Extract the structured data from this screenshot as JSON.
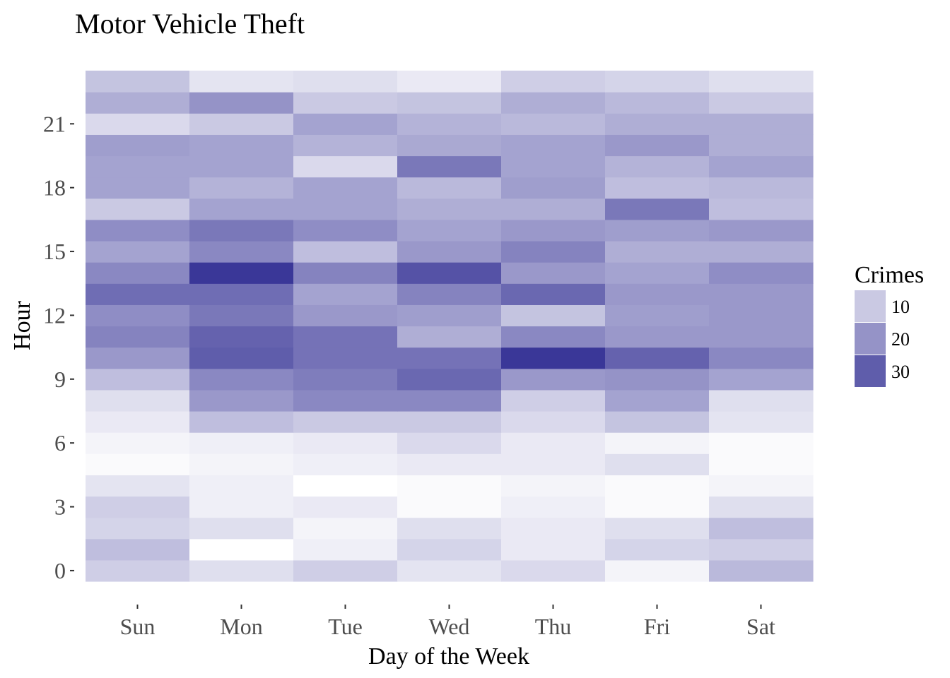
{
  "chart_data": {
    "type": "heatmap",
    "title": "Motor Vehicle Theft",
    "xlabel": "Day of the Week",
    "ylabel": "Hour",
    "x_categories": [
      "Sun",
      "Mon",
      "Tue",
      "Wed",
      "Thu",
      "Fri",
      "Sat"
    ],
    "y_hours": [
      0,
      1,
      2,
      3,
      4,
      5,
      6,
      7,
      8,
      9,
      10,
      11,
      12,
      13,
      14,
      15,
      16,
      17,
      18,
      19,
      20,
      21,
      22,
      23
    ],
    "y_ticks": [
      0,
      3,
      6,
      9,
      12,
      15,
      18,
      21
    ],
    "y_tick_labels": [
      "0",
      "3",
      "6",
      "9",
      "12",
      "15",
      "18",
      "21"
    ],
    "values": [
      [
        9,
        6,
        9,
        5,
        7,
        2,
        13
      ],
      [
        12,
        0,
        3,
        8,
        4,
        8,
        9
      ],
      [
        8,
        6,
        2,
        6,
        4,
        6,
        12
      ],
      [
        9,
        3,
        4,
        1,
        3,
        1,
        6
      ],
      [
        5,
        3,
        0,
        1,
        2,
        1,
        2
      ],
      [
        1,
        2,
        3,
        4,
        4,
        6,
        1
      ],
      [
        2,
        3,
        4,
        7,
        4,
        2,
        1
      ],
      [
        4,
        12,
        10,
        10,
        7,
        11,
        5
      ],
      [
        6,
        19,
        22,
        22,
        9,
        17,
        6
      ],
      [
        12,
        22,
        24,
        28,
        19,
        20,
        17
      ],
      [
        19,
        30,
        26,
        26,
        37,
        29,
        22
      ],
      [
        23,
        29,
        26,
        15,
        22,
        19,
        19
      ],
      [
        21,
        25,
        19,
        18,
        11,
        18,
        19
      ],
      [
        27,
        27,
        17,
        23,
        28,
        19,
        19
      ],
      [
        22,
        37,
        23,
        32,
        19,
        17,
        21
      ],
      [
        17,
        22,
        12,
        19,
        23,
        15,
        15
      ],
      [
        21,
        25,
        21,
        17,
        19,
        18,
        19
      ],
      [
        10,
        17,
        17,
        15,
        15,
        25,
        12
      ],
      [
        17,
        14,
        17,
        13,
        18,
        12,
        13
      ],
      [
        17,
        17,
        7,
        25,
        17,
        14,
        17
      ],
      [
        18,
        17,
        14,
        16,
        17,
        19,
        15
      ],
      [
        7,
        10,
        17,
        14,
        13,
        15,
        15
      ],
      [
        15,
        20,
        10,
        11,
        15,
        13,
        10
      ],
      [
        11,
        5,
        6,
        4,
        9,
        8,
        6
      ]
    ],
    "legend": {
      "title": "Crimes",
      "placement": "right",
      "breaks": [
        10,
        20,
        30
      ],
      "break_labels": [
        "10",
        "20",
        "30"
      ]
    },
    "color_scale": {
      "low": "#ffffff",
      "high": "#3a3798",
      "min": 0,
      "max": 37
    },
    "grid": false
  }
}
